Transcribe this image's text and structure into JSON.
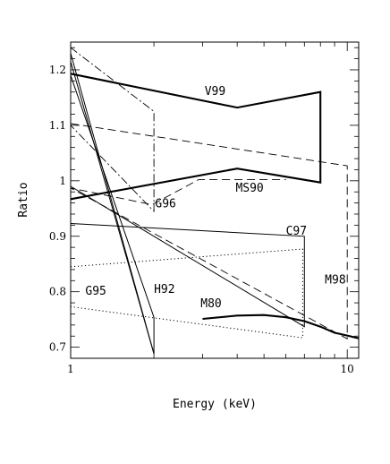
{
  "chart_data": {
    "type": "line",
    "xlabel": "Energy (keV)",
    "ylabel": "Ratio",
    "xscale": "log",
    "xlim": [
      1,
      11
    ],
    "ylim": [
      0.68,
      1.25
    ],
    "xticks": [
      {
        "value": 1,
        "label": "1"
      },
      {
        "value": 10,
        "label": "10"
      }
    ],
    "yticks": [
      {
        "value": 0.7,
        "label": "0.7"
      },
      {
        "value": 0.8,
        "label": "0.8"
      },
      {
        "value": 0.9,
        "label": "0.9"
      },
      {
        "value": 1.0,
        "label": "1"
      },
      {
        "value": 1.1,
        "label": "1.1"
      },
      {
        "value": 1.2,
        "label": "1.2"
      }
    ],
    "series": [
      {
        "name": "V99",
        "style": "thick-solid",
        "label_at": {
          "x": 3.05,
          "y": 1.155
        },
        "paths": [
          [
            [
              1,
              1.193
            ],
            [
              4,
              1.132
            ],
            [
              8,
              1.16
            ],
            [
              8,
              0.997
            ],
            [
              4,
              1.022
            ],
            [
              1,
              0.967
            ]
          ]
        ]
      },
      {
        "name": "MS90",
        "style": "long-dash",
        "label_at": {
          "x": 3.95,
          "y": 0.98
        },
        "paths": [
          [
            [
              1,
              1.103
            ],
            [
              10,
              1.027
            ],
            [
              10,
              0.715
            ],
            [
              1,
              0.987
            ],
            [
              1.97,
              0.957
            ],
            [
              2.9,
              1.002
            ],
            [
              6,
              1.002
            ]
          ]
        ]
      },
      {
        "name": "G96",
        "style": "dash-dot",
        "label_at": {
          "x": 2.02,
          "y": 0.952
        },
        "paths": [
          [
            [
              1,
              1.24
            ],
            [
              2,
              1.125
            ],
            [
              2,
              0.945
            ],
            [
              1,
              1.1
            ]
          ]
        ]
      },
      {
        "name": "C97",
        "style": "thin-solid",
        "label_at": {
          "x": 6.0,
          "y": 0.903
        },
        "paths": [
          [
            [
              1,
              0.923
            ],
            [
              7,
              0.9
            ],
            [
              7,
              0.737
            ],
            [
              1,
              0.99
            ]
          ]
        ]
      },
      {
        "name": "G95",
        "style": "dotted",
        "label_at": {
          "x": 1.13,
          "y": 0.795
        },
        "paths": [
          [
            [
              1,
              0.845
            ],
            [
              6.9,
              0.877
            ],
            [
              6.9,
              0.717
            ],
            [
              1,
              0.773
            ]
          ]
        ]
      },
      {
        "name": "H92",
        "style": "thin-solid",
        "label_at": {
          "x": 2.0,
          "y": 0.798
        },
        "paths": [
          [
            [
              1,
              1.23
            ],
            [
              2,
              0.688
            ]
          ],
          [
            [
              1,
              1.19
            ],
            [
              2,
              0.754
            ],
            [
              2,
              0.688
            ]
          ],
          [
            [
              1,
              1.215
            ],
            [
              2,
              0.688
            ]
          ]
        ]
      },
      {
        "name": "M80",
        "style": "thick-solid",
        "label_at": {
          "x": 2.95,
          "y": 0.772
        },
        "paths": [
          [
            [
              3,
              0.751
            ],
            [
              4,
              0.757
            ],
            [
              5,
              0.758
            ],
            [
              6,
              0.754
            ],
            [
              7,
              0.747
            ],
            [
              8,
              0.737
            ],
            [
              9,
              0.726
            ],
            [
              10,
              0.721
            ],
            [
              11,
              0.716
            ]
          ]
        ]
      },
      {
        "name": "M98",
        "style": "long-dash",
        "label_at": {
          "x": 8.3,
          "y": 0.815
        },
        "paths": []
      }
    ]
  }
}
